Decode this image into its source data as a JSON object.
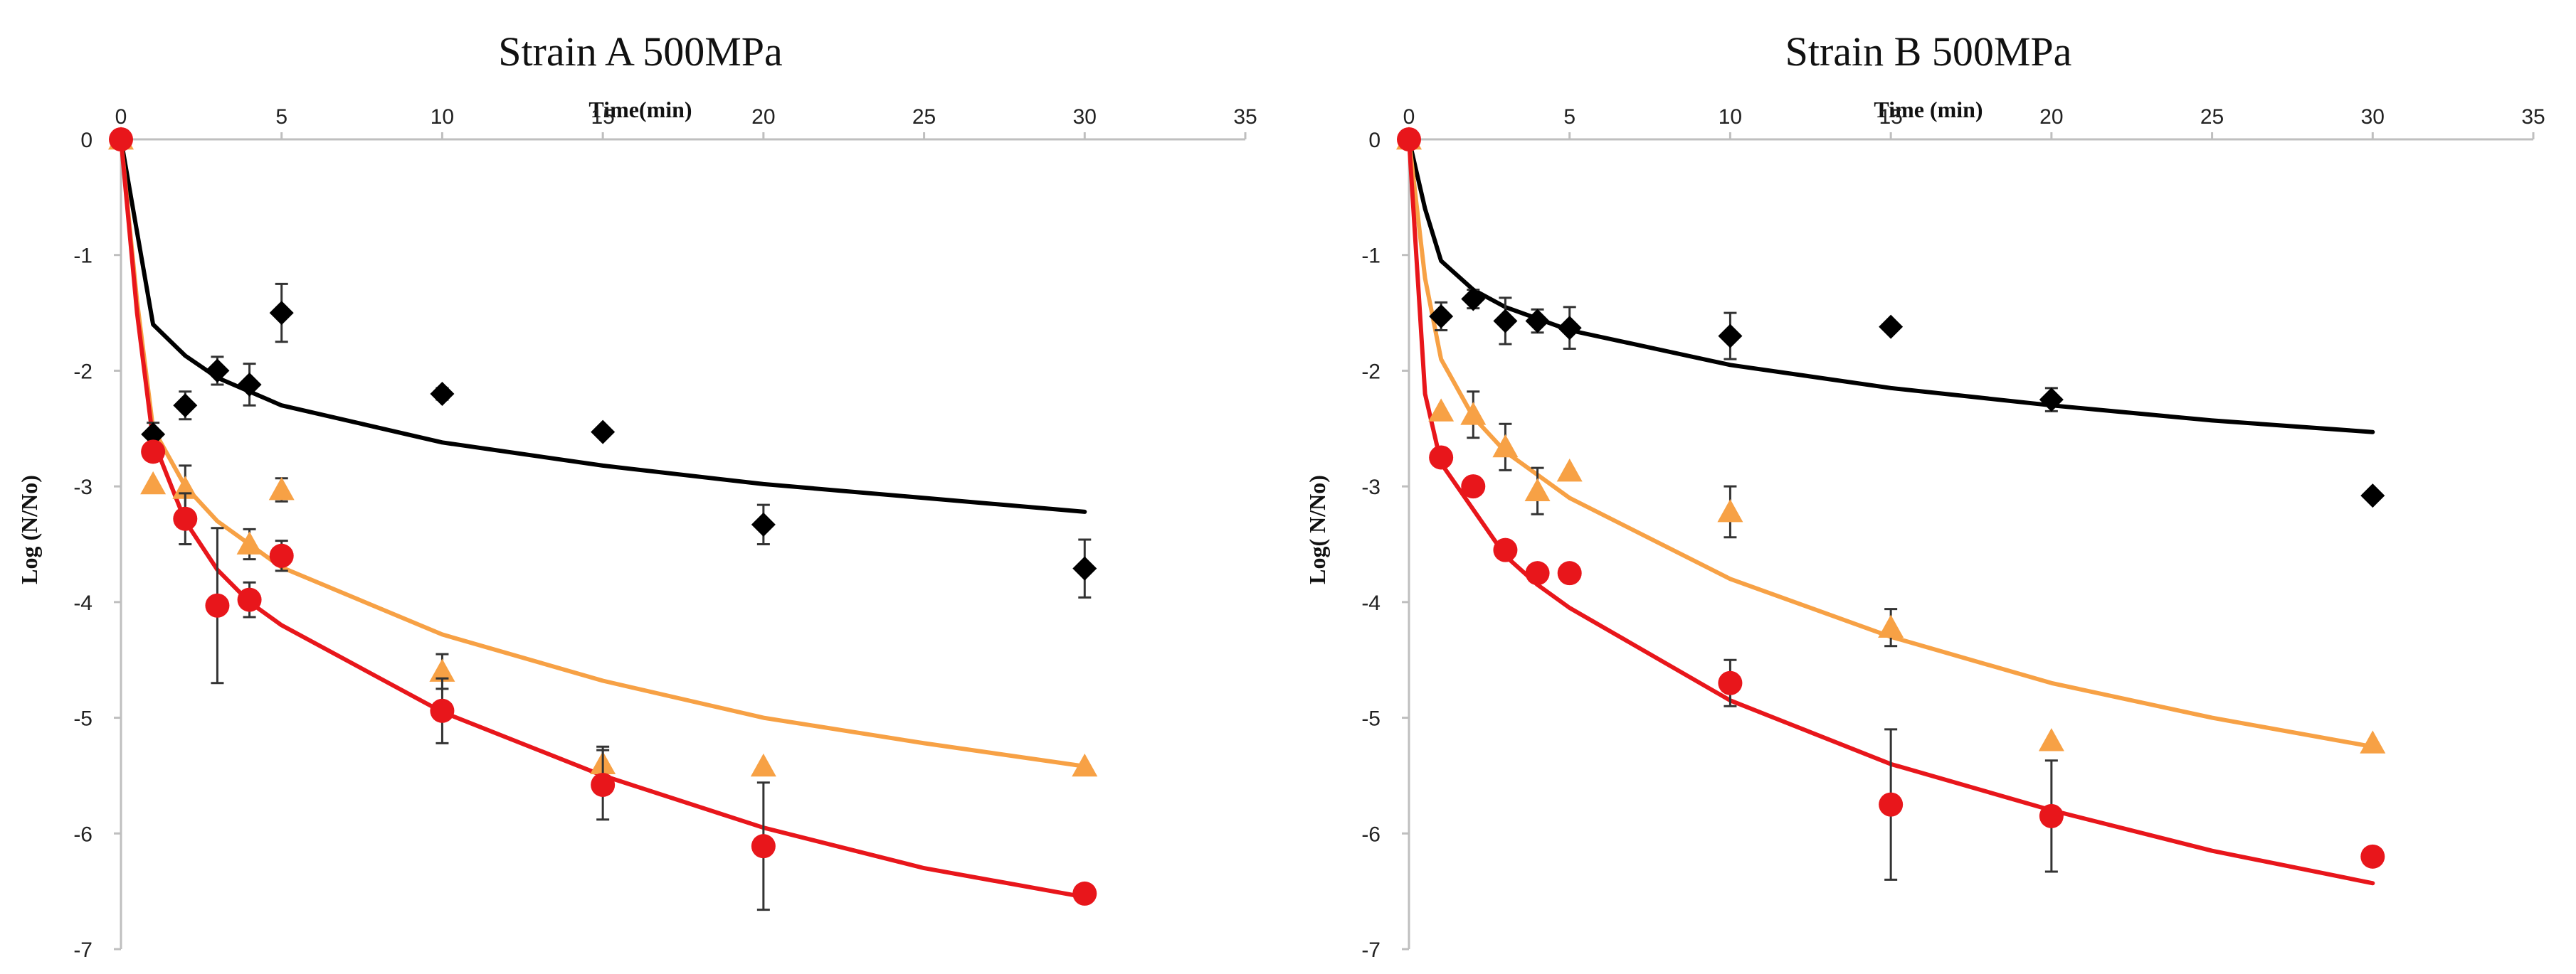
{
  "colors": {
    "series1": "#000000",
    "series2": "#f7a145",
    "series3": "#e8161b",
    "axis": "#bfbfbf"
  },
  "chart_data": [
    {
      "type": "scatter",
      "title": "Strain A 500MPa",
      "xlabel": "Time(min)",
      "ylabel": "Log (N/No)",
      "xlim": [
        0,
        35
      ],
      "ylim": [
        -7,
        0
      ],
      "xticks": [
        0,
        5,
        10,
        15,
        20,
        25,
        30,
        35
      ],
      "yticks": [
        0,
        -1,
        -2,
        -3,
        -4,
        -5,
        -6,
        -7
      ],
      "x_axis_position": "top",
      "grid": false,
      "series": [
        {
          "name": "black diamonds",
          "color_key": "series1",
          "marker": "diamond",
          "x": [
            0,
            1,
            2,
            3,
            4,
            5,
            10,
            15,
            20,
            30
          ],
          "y": [
            0,
            -2.55,
            -2.3,
            -2.0,
            -2.12,
            -1.5,
            -2.2,
            -2.53,
            -3.33,
            -3.71
          ],
          "err": [
            0,
            0.1,
            0.12,
            0.12,
            0.18,
            0.25,
            0.05,
            0,
            0.17,
            0.25
          ],
          "fit": {
            "x": [
              0,
              1,
              2,
              3,
              5,
              10,
              15,
              20,
              25,
              30
            ],
            "y": [
              0,
              -1.6,
              -1.87,
              -2.06,
              -2.3,
              -2.62,
              -2.82,
              -2.98,
              -3.1,
              -3.22
            ]
          }
        },
        {
          "name": "orange triangles",
          "color_key": "series2",
          "marker": "triangle",
          "x": [
            0,
            1,
            2,
            4,
            5,
            10,
            15,
            20,
            30
          ],
          "y": [
            0,
            -2.98,
            -3.02,
            -3.5,
            -3.03,
            -4.6,
            -5.4,
            -5.42,
            -5.42
          ],
          "err": [
            0,
            0,
            0.2,
            0.13,
            0.1,
            0.15,
            0.15,
            0,
            0
          ],
          "fit": {
            "x": [
              0,
              0.5,
              1,
              2,
              3,
              5,
              10,
              15,
              20,
              25,
              30
            ],
            "y": [
              0,
              -1.4,
              -2.5,
              -3.0,
              -3.3,
              -3.7,
              -4.28,
              -4.68,
              -5.0,
              -5.22,
              -5.42
            ]
          }
        },
        {
          "name": "red circles",
          "color_key": "series3",
          "marker": "circle",
          "x": [
            0,
            1,
            2,
            3,
            4,
            5,
            10,
            15,
            20,
            30
          ],
          "y": [
            0,
            -2.7,
            -3.28,
            -4.03,
            -3.98,
            -3.6,
            -4.94,
            -5.58,
            -6.11,
            -6.52
          ],
          "err": [
            0,
            0,
            0.22,
            0.67,
            0.15,
            0.13,
            0.28,
            0.3,
            0.55,
            0
          ],
          "fit": {
            "x": [
              0,
              0.5,
              1,
              2,
              3,
              4,
              5,
              10,
              15,
              20,
              25,
              30
            ],
            "y": [
              0,
              -1.5,
              -2.6,
              -3.3,
              -3.72,
              -4.0,
              -4.2,
              -4.95,
              -5.5,
              -5.95,
              -6.3,
              -6.55
            ]
          }
        }
      ]
    },
    {
      "type": "scatter",
      "title": "Strain B 500MPa",
      "xlabel": "Time (min)",
      "ylabel": "Log( N/No)",
      "xlim": [
        0,
        35
      ],
      "ylim": [
        -7,
        0
      ],
      "xticks": [
        0,
        5,
        10,
        15,
        20,
        25,
        30,
        35
      ],
      "yticks": [
        0,
        -1,
        -2,
        -3,
        -4,
        -5,
        -6,
        -7
      ],
      "x_axis_position": "top",
      "grid": false,
      "series": [
        {
          "name": "black diamonds",
          "color_key": "series1",
          "marker": "diamond",
          "x": [
            0,
            1,
            2,
            3,
            4,
            5,
            10,
            15,
            20,
            30
          ],
          "y": [
            0,
            -1.53,
            -1.38,
            -1.57,
            -1.57,
            -1.63,
            -1.7,
            -1.62,
            -2.25,
            -3.08
          ],
          "err": [
            0,
            0.12,
            0.08,
            0.2,
            0.1,
            0.18,
            0.2,
            0,
            0.1,
            0
          ],
          "fit": {
            "x": [
              0,
              0.5,
              1,
              2,
              3,
              5,
              10,
              15,
              20,
              25,
              30
            ],
            "y": [
              0,
              -0.6,
              -1.05,
              -1.3,
              -1.45,
              -1.65,
              -1.95,
              -2.15,
              -2.3,
              -2.43,
              -2.53
            ]
          }
        },
        {
          "name": "orange triangles",
          "color_key": "series2",
          "marker": "triangle",
          "x": [
            0,
            1,
            2,
            3,
            4,
            5,
            10,
            15,
            20,
            30
          ],
          "y": [
            0,
            -2.35,
            -2.38,
            -2.66,
            -3.04,
            -2.87,
            -3.22,
            -4.22,
            -5.2,
            -5.22
          ],
          "err": [
            0,
            0,
            0.2,
            0.2,
            0.2,
            0,
            0.22,
            0.16,
            0,
            0
          ],
          "fit": {
            "x": [
              0,
              0.5,
              1,
              2,
              3,
              5,
              10,
              15,
              20,
              25,
              30
            ],
            "y": [
              0,
              -1.2,
              -1.9,
              -2.4,
              -2.7,
              -3.1,
              -3.8,
              -4.3,
              -4.7,
              -5.0,
              -5.25
            ]
          }
        },
        {
          "name": "red circles",
          "color_key": "series3",
          "marker": "circle",
          "x": [
            0,
            1,
            2,
            3,
            4,
            5,
            10,
            15,
            20,
            30
          ],
          "y": [
            0,
            -2.75,
            -3.0,
            -3.55,
            -3.75,
            -3.75,
            -4.7,
            -5.75,
            -5.85,
            -6.2
          ],
          "err": [
            0,
            0,
            0,
            0,
            0,
            0,
            0.2,
            0.65,
            0.48,
            0
          ],
          "fit": {
            "x": [
              0,
              0.5,
              1,
              2,
              3,
              4,
              5,
              10,
              15,
              20,
              25,
              30
            ],
            "y": [
              0,
              -2.2,
              -2.8,
              -3.2,
              -3.6,
              -3.85,
              -4.05,
              -4.85,
              -5.4,
              -5.8,
              -6.15,
              -6.43
            ]
          }
        }
      ]
    }
  ]
}
